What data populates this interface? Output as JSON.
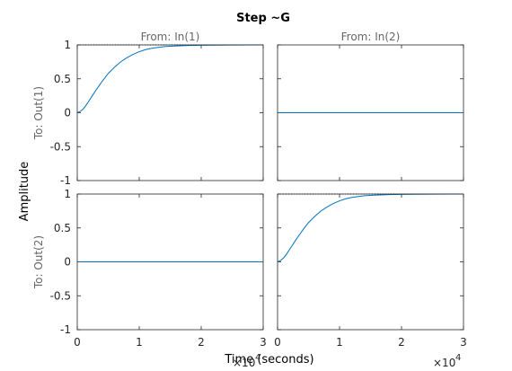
{
  "chart_data": {
    "type": "line",
    "title": "Step ~G",
    "xlabel": "Time (seconds)",
    "ylabel": "Amplitude",
    "x_multiplier": "×10",
    "x_multiplier_exponent": "4",
    "xlim": [
      0,
      3
    ],
    "ylim": [
      -1,
      1
    ],
    "xticks": [
      "0",
      "1",
      "2",
      "3"
    ],
    "yticks": [
      "-1",
      "-0.5",
      "0",
      "0.5",
      "1"
    ],
    "grid": false,
    "legend": "none",
    "line_color": "#0072bd",
    "steady_state_color": "#000000",
    "columns": [
      "From: In(1)",
      "From: In(2)"
    ],
    "rows": [
      "To: Out(1)",
      "To: Out(2)"
    ],
    "panels": [
      {
        "row": 0,
        "col": 0,
        "steady_state": 1,
        "x": [
          0,
          0.05,
          0.1,
          0.15,
          0.2,
          0.3,
          0.4,
          0.5,
          0.6,
          0.7,
          0.8,
          0.9,
          1.0,
          1.1,
          1.2,
          1.4,
          1.6,
          1.8,
          2.0,
          2.2,
          2.5,
          2.8,
          3.0
        ],
        "y": [
          0,
          0.02,
          0.06,
          0.12,
          0.19,
          0.33,
          0.46,
          0.58,
          0.67,
          0.75,
          0.81,
          0.86,
          0.9,
          0.93,
          0.95,
          0.975,
          0.985,
          0.992,
          0.995,
          0.997,
          0.999,
          1.0,
          1.0
        ]
      },
      {
        "row": 0,
        "col": 1,
        "steady_state": null,
        "x": [
          0,
          3
        ],
        "y": [
          0,
          0
        ]
      },
      {
        "row": 1,
        "col": 0,
        "steady_state": null,
        "x": [
          0,
          3
        ],
        "y": [
          0,
          0
        ]
      },
      {
        "row": 1,
        "col": 1,
        "steady_state": 1,
        "x": [
          0,
          0.05,
          0.1,
          0.15,
          0.2,
          0.3,
          0.4,
          0.5,
          0.6,
          0.7,
          0.8,
          0.9,
          1.0,
          1.1,
          1.2,
          1.4,
          1.6,
          1.8,
          2.0,
          2.2,
          2.5,
          2.8,
          3.0
        ],
        "y": [
          0,
          0.02,
          0.06,
          0.12,
          0.19,
          0.33,
          0.46,
          0.58,
          0.67,
          0.75,
          0.81,
          0.86,
          0.9,
          0.93,
          0.95,
          0.975,
          0.985,
          0.992,
          0.995,
          0.997,
          0.999,
          1.0,
          1.0
        ]
      }
    ]
  }
}
